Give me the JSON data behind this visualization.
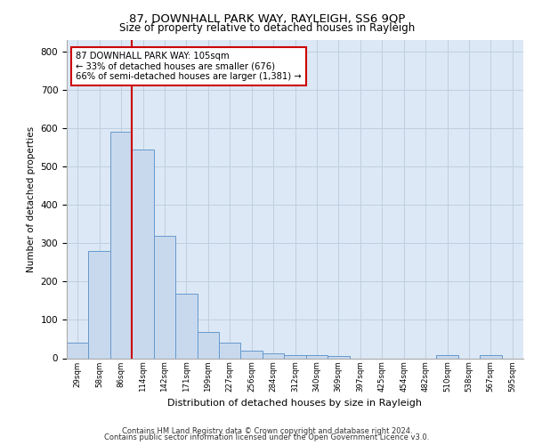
{
  "title1": "87, DOWNHALL PARK WAY, RAYLEIGH, SS6 9QP",
  "title2": "Size of property relative to detached houses in Rayleigh",
  "xlabel": "Distribution of detached houses by size in Rayleigh",
  "ylabel": "Number of detached properties",
  "bar_values": [
    40,
    280,
    590,
    545,
    320,
    168,
    68,
    40,
    20,
    12,
    8,
    8,
    5,
    0,
    0,
    0,
    0,
    8,
    0,
    8,
    0
  ],
  "bin_labels": [
    "29sqm",
    "58sqm",
    "86sqm",
    "114sqm",
    "142sqm",
    "171sqm",
    "199sqm",
    "227sqm",
    "256sqm",
    "284sqm",
    "312sqm",
    "340sqm",
    "369sqm",
    "397sqm",
    "425sqm",
    "454sqm",
    "482sqm",
    "510sqm",
    "538sqm",
    "567sqm",
    "595sqm"
  ],
  "bar_color": "#c8d9ee",
  "bar_edge_color": "#6699cc",
  "vline_x": 2.5,
  "vline_color": "#cc0000",
  "annotation_text": "87 DOWNHALL PARK WAY: 105sqm\n← 33% of detached houses are smaller (676)\n66% of semi-detached houses are larger (1,381) →",
  "annotation_box_color": "#ffffff",
  "annotation_box_edge": "#cc0000",
  "ylim": [
    0,
    830
  ],
  "yticks": [
    0,
    100,
    200,
    300,
    400,
    500,
    600,
    700,
    800
  ],
  "grid_color": "#c0cfdf",
  "bg_color": "#dce8f5",
  "footer1": "Contains HM Land Registry data © Crown copyright and database right 2024.",
  "footer2": "Contains public sector information licensed under the Open Government Licence v3.0."
}
